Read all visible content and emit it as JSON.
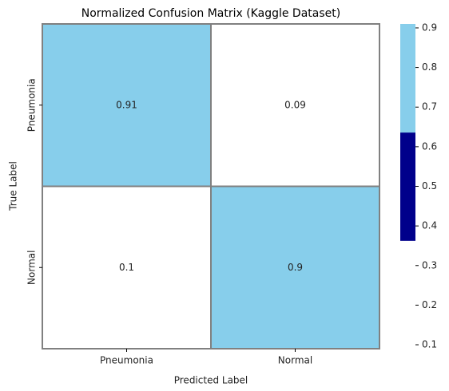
{
  "chart_data": {
    "type": "heatmap",
    "title": "Normalized Confusion Matrix (Kaggle Dataset)",
    "xlabel": "Predicted Label",
    "ylabel": "True Label",
    "x_categories": [
      "Pneumonia",
      "Normal"
    ],
    "y_categories": [
      "Pneumonia",
      "Normal"
    ],
    "values": [
      [
        0.91,
        0.09
      ],
      [
        0.1,
        0.9
      ]
    ],
    "colors": [
      "#ffffff",
      "#00008b",
      "#87ceeb"
    ],
    "zlim": [
      0.09,
      0.91
    ],
    "zticks": [
      0.1,
      0.2,
      0.3,
      0.4,
      0.5,
      0.6,
      0.7,
      0.8,
      0.9
    ],
    "grid_color": "#808080"
  }
}
